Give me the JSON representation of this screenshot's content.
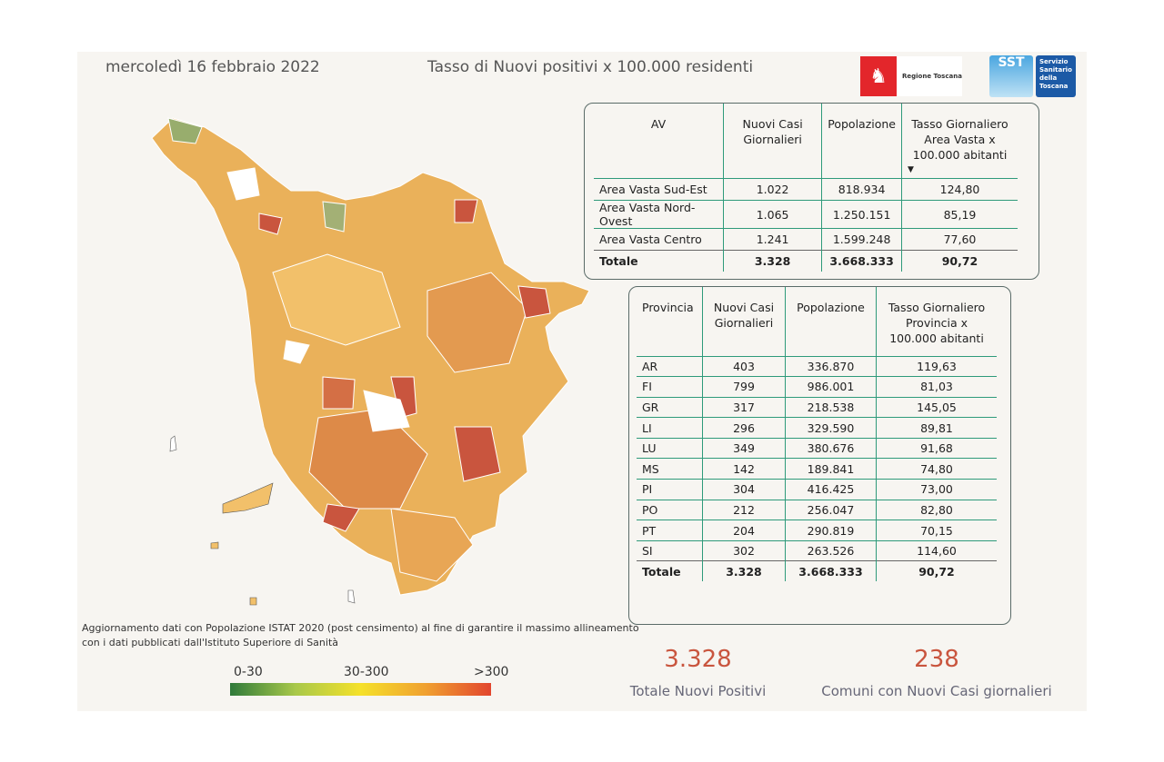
{
  "header": {
    "date": "mercoledì 16 febbraio 2022",
    "title": "Tasso di Nuovi positivi x 100.000 residenti",
    "logo_regione": "Regione Toscana",
    "logo_sst": "SST",
    "logo_sst_text": "Servizio Sanitario della Toscana"
  },
  "av_table": {
    "headers": [
      "AV",
      "Nuovi Casi Giornalieri",
      "Popolazione",
      "Tasso Giornaliero Area Vasta x 100.000 abitanti"
    ],
    "rows": [
      [
        "Area Vasta Sud-Est",
        "1.022",
        "818.934",
        "124,80"
      ],
      [
        "Area Vasta Nord-Ovest",
        "1.065",
        "1.250.151",
        "85,19"
      ],
      [
        "Area Vasta Centro",
        "1.241",
        "1.599.248",
        "77,60"
      ]
    ],
    "total": [
      "Totale",
      "3.328",
      "3.668.333",
      "90,72"
    ]
  },
  "prov_table": {
    "headers": [
      "Provincia",
      "Nuovi Casi Giornalieri",
      "Popolazione",
      "Tasso Giornaliero Provincia x 100.000 abitanti"
    ],
    "rows": [
      [
        "AR",
        "403",
        "336.870",
        "119,63"
      ],
      [
        "FI",
        "799",
        "986.001",
        "81,03"
      ],
      [
        "GR",
        "317",
        "218.538",
        "145,05"
      ],
      [
        "LI",
        "296",
        "329.590",
        "89,81"
      ],
      [
        "LU",
        "349",
        "380.676",
        "91,68"
      ],
      [
        "MS",
        "142",
        "189.841",
        "74,80"
      ],
      [
        "PI",
        "304",
        "416.425",
        "73,00"
      ],
      [
        "PO",
        "212",
        "256.047",
        "82,80"
      ],
      [
        "PT",
        "204",
        "290.819",
        "70,15"
      ],
      [
        "SI",
        "302",
        "263.526",
        "114,60"
      ]
    ],
    "total": [
      "Totale",
      "3.328",
      "3.668.333",
      "90,72"
    ]
  },
  "note": "Aggiornamento dati con Popolazione ISTAT 2020 (post censimento) al fine di garantire il massimo allineamento con i dati pubblicati dall'Istituto Superiore di Sanità",
  "legend": {
    "low": "0-30",
    "mid": "30-300",
    "high": ">300",
    "colors": [
      "#2f7a3a",
      "#f5e12a",
      "#e2452e"
    ]
  },
  "kpis": [
    {
      "value": "3.328",
      "label": "Totale Nuovi Positivi"
    },
    {
      "value": "238",
      "label": "Comuni con Nuovi Casi giornalieri"
    }
  ]
}
